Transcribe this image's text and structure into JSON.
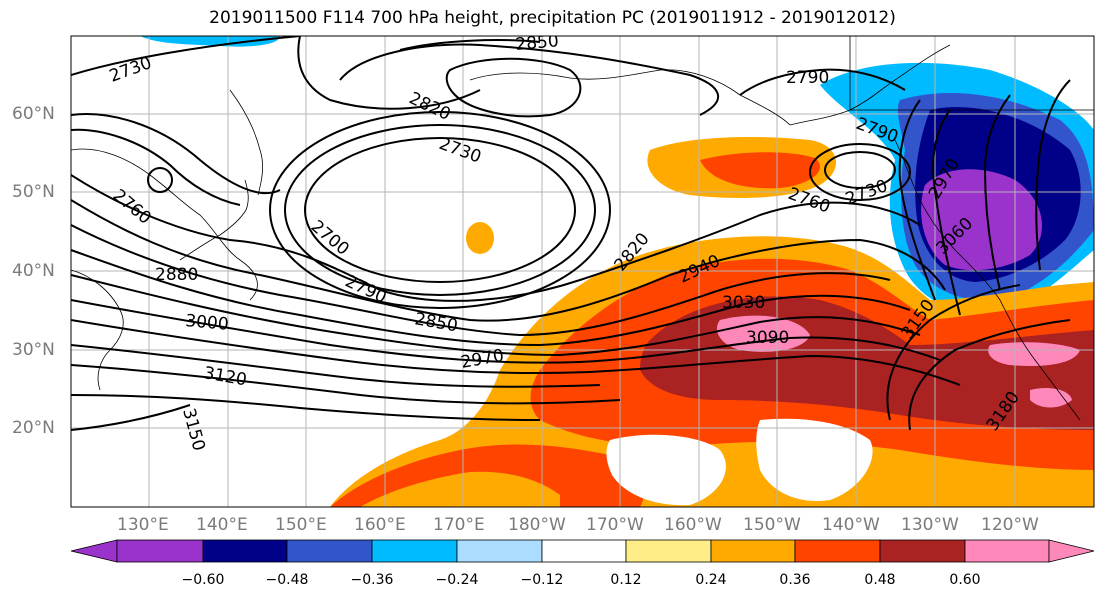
{
  "title": "2019011500 F114 700 hPa height, precipitation PC (2019011912 - 2019012012)",
  "map": {
    "longitude_labels": [
      "130°E",
      "140°E",
      "150°E",
      "160°E",
      "170°E",
      "180°W",
      "170°W",
      "160°W",
      "150°W",
      "140°W",
      "130°W",
      "120°W"
    ],
    "latitude_labels": [
      "60°N",
      "50°N",
      "40°N",
      "30°N",
      "20°N"
    ],
    "height_contour_labels": [
      "2730",
      "2850",
      "2790",
      "2820",
      "2730",
      "2790",
      "2760",
      "2730",
      "2760",
      "2700",
      "2820",
      "2940",
      "2880",
      "2790",
      "3030",
      "3000",
      "2850",
      "3090",
      "2970",
      "3060",
      "3150",
      "3120",
      "3180",
      "3150",
      "2970"
    ]
  },
  "colorbar": {
    "tick_labels": [
      "−0.60",
      "−0.48",
      "−0.36",
      "−0.24",
      "−0.12",
      "0.12",
      "0.24",
      "0.36",
      "0.48",
      "0.60"
    ],
    "colors": [
      "#9933cc",
      "#000088",
      "#3355cc",
      "#00bbff",
      "#aaddff",
      "#ffffff",
      "#ffee88",
      "#ffaa00",
      "#ff4400",
      "#aa2222",
      "#ff88bb"
    ]
  }
}
